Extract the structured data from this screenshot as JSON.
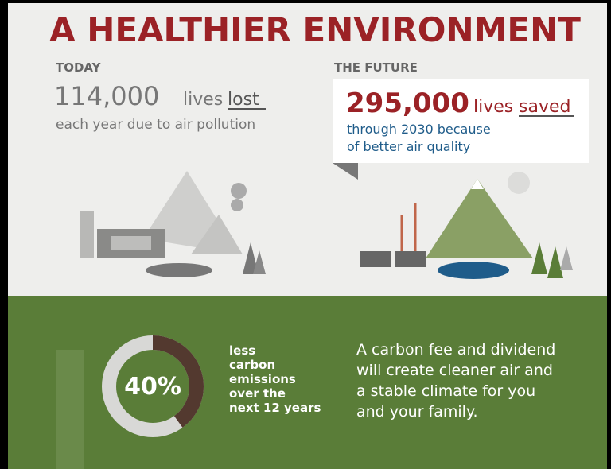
{
  "header": {
    "title": "A HEALTHIER ENVIRONMENT"
  },
  "today": {
    "label": "TODAY",
    "number": "114,000",
    "unit": "lives",
    "emphasis": "lost",
    "caption": "each year due to air pollution"
  },
  "future": {
    "label": "THE FUTURE",
    "number": "295,000",
    "unit": "lives",
    "emphasis": "saved",
    "caption_lines": [
      "through 2030 because",
      "of better air quality"
    ]
  },
  "emissions": {
    "value": 40,
    "label": "40%",
    "text_lines": [
      "less",
      "carbon",
      "emissions",
      "over the",
      "next 12 years"
    ]
  },
  "message": {
    "lines": [
      "A carbon fee and dividend",
      "will create cleaner air and",
      "a stable climate for you",
      "and your family."
    ]
  }
}
